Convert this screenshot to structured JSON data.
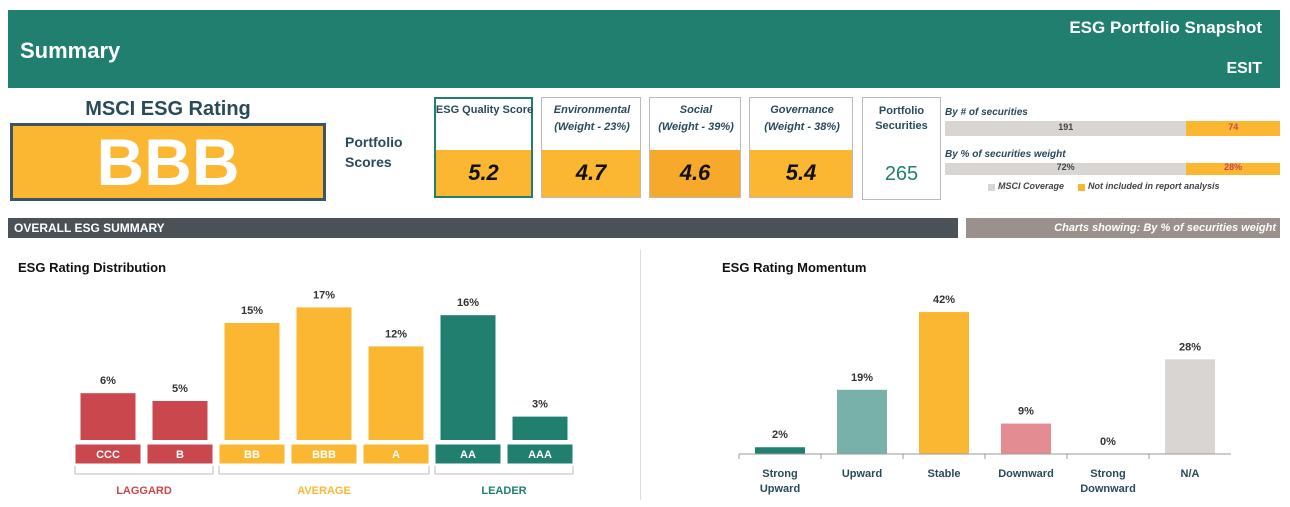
{
  "header": {
    "title": "Summary",
    "subtitle": "ESG Portfolio Snapshot",
    "code": "ESIT"
  },
  "rating": {
    "label": "MSCI ESG Rating",
    "value": "BBB"
  },
  "scores": {
    "label": "Portfolio Scores",
    "items": [
      {
        "name": "ESG Quality Score",
        "value": 5.2
      },
      {
        "name": "Environmental",
        "weight": "(Weight - 23%)",
        "value": 4.7
      },
      {
        "name": "Social",
        "weight": "(Weight - 39%)",
        "value": 4.6
      },
      {
        "name": "Governance",
        "weight": "(Weight - 38%)",
        "value": 5.4
      }
    ]
  },
  "securities": {
    "label": "Portfolio Securities",
    "value": 265
  },
  "coverage": {
    "rows": [
      {
        "label": "By # of securities",
        "values": [
          191,
          74
        ]
      },
      {
        "label": "By % of securities weight",
        "values": [
          72,
          28
        ],
        "value_labels": [
          "72%",
          "28%"
        ]
      }
    ],
    "legend": [
      "MSCI Coverage",
      "Not included in report analysis"
    ],
    "colors": [
      "#d9d5d2",
      "#fbb731"
    ]
  },
  "section": {
    "title": "OVERALL ESG SUMMARY",
    "note": "Charts showing: By % of securities weight"
  },
  "chart_data": [
    {
      "type": "bar",
      "title": "ESG Rating Distribution",
      "categories": [
        "CCC",
        "B",
        "BB",
        "BBB",
        "A",
        "AA",
        "AAA"
      ],
      "values": [
        6,
        5,
        15,
        17,
        12,
        16,
        3
      ],
      "value_labels": [
        "6%",
        "5%",
        "15%",
        "17%",
        "12%",
        "16%",
        "3%"
      ],
      "colors": [
        "#c9474d",
        "#c9474d",
        "#fbb731",
        "#fbb731",
        "#fbb731",
        "#217f70",
        "#217f70"
      ],
      "groups": [
        {
          "name": "LAGGARD",
          "color": "#c9474d",
          "members": [
            "CCC",
            "B"
          ]
        },
        {
          "name": "AVERAGE",
          "color": "#fbb731",
          "members": [
            "BB",
            "BBB",
            "A"
          ]
        },
        {
          "name": "LEADER",
          "color": "#217f70",
          "members": [
            "AA",
            "AAA"
          ]
        }
      ]
    },
    {
      "type": "bar",
      "title": "ESG Rating Momentum",
      "categories": [
        "Strong Upward",
        "Upward",
        "Stable",
        "Downward",
        "Strong Downward",
        "N/A"
      ],
      "values": [
        2,
        19,
        42,
        9,
        0,
        28
      ],
      "value_labels": [
        "2%",
        "19%",
        "42%",
        "9%",
        "0%",
        "28%"
      ],
      "colors": [
        "#217f70",
        "#77b1a9",
        "#fbb731",
        "#e38d92",
        "#cccccc",
        "#d9d5d2"
      ]
    }
  ]
}
